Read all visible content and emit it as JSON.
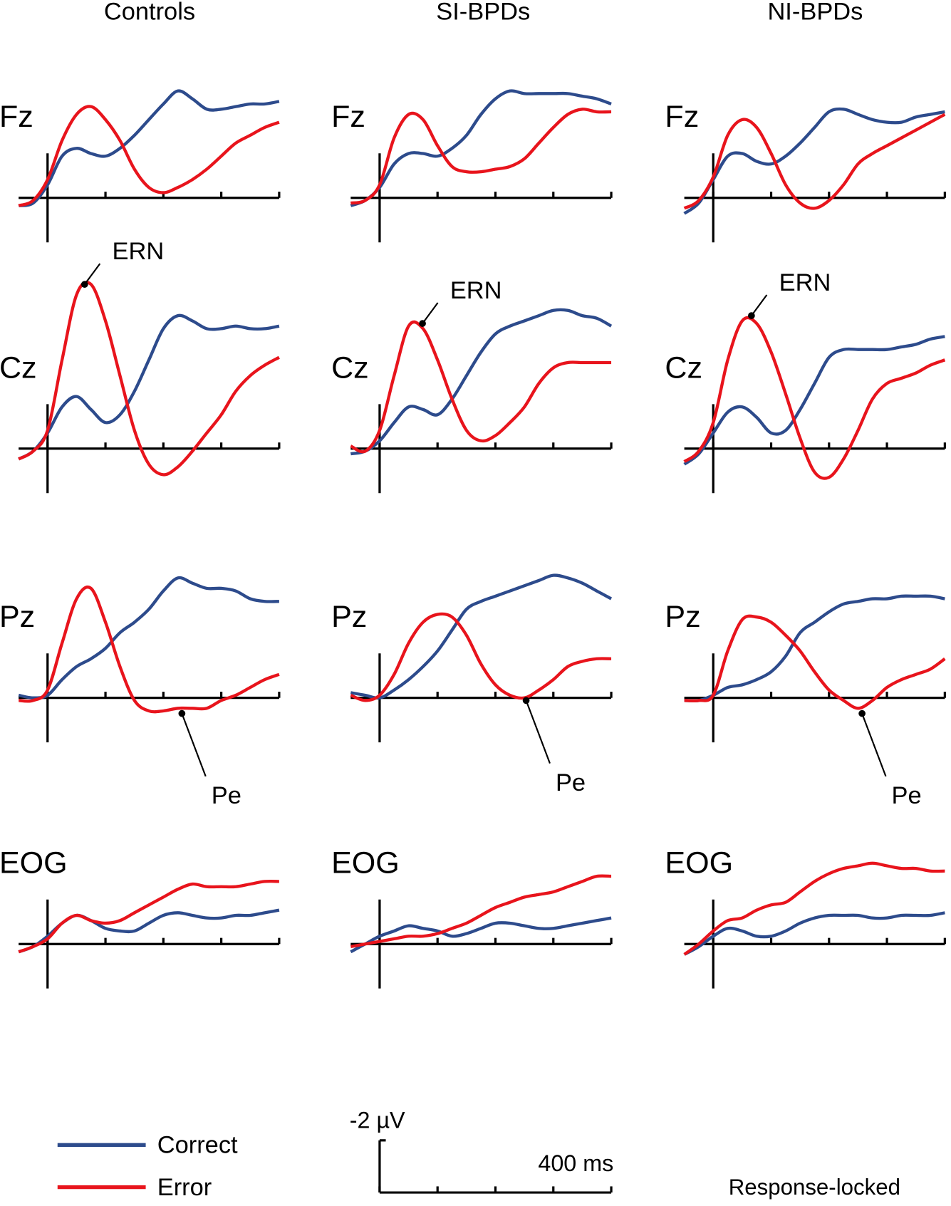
{
  "columns": [
    "Controls",
    "SI-BPDs",
    "NI-BPDs"
  ],
  "legend": [
    {
      "name": "Correct",
      "color": "#2d4b8c"
    },
    {
      "name": "Error",
      "color": "#e8141c"
    }
  ],
  "scale_bar": {
    "y_label": "-2 µV",
    "y_value": -2,
    "x_label": "400 ms",
    "x_value": 400,
    "xticks": [
      0,
      100,
      200,
      300,
      400
    ]
  },
  "note": "Response-locked",
  "chart_data": [
    {
      "type": "line",
      "title": "Fz",
      "x": [
        -50,
        -25,
        0,
        25,
        50,
        75,
        100,
        125,
        150,
        175,
        200,
        225,
        250,
        275,
        300,
        325,
        350,
        375,
        400
      ],
      "xlim": [
        -50,
        400
      ],
      "xticks": [
        0,
        100,
        200,
        300,
        400
      ],
      "ylim": [
        2,
        -7
      ],
      "series": [
        {
          "color": "#2d4b8c",
          "values": [
            0.3,
            0.2,
            -0.5,
            -1.6,
            -1.9,
            -1.7,
            -1.6,
            -1.9,
            -2.4,
            -3.0,
            -3.6,
            -4.1,
            -3.8,
            -3.4,
            -3.4,
            -3.5,
            -3.6,
            -3.6,
            -3.7
          ]
        },
        {
          "color": "#e8141c",
          "values": [
            0.3,
            0.1,
            -0.7,
            -2.2,
            -3.2,
            -3.5,
            -3.0,
            -2.2,
            -1.1,
            -0.4,
            -0.2,
            -0.4,
            -0.7,
            -1.1,
            -1.6,
            -2.1,
            -2.4,
            -2.7,
            -2.9
          ]
        }
      ]
    },
    {
      "type": "line",
      "title": "Fz",
      "x": [
        -50,
        -25,
        0,
        25,
        50,
        75,
        100,
        125,
        150,
        175,
        200,
        225,
        250,
        275,
        300,
        325,
        350,
        375,
        400
      ],
      "xlim": [
        -50,
        400
      ],
      "xticks": [
        0,
        100,
        200,
        300,
        400
      ],
      "ylim": [
        2,
        -7
      ],
      "series": [
        {
          "color": "#2d4b8c",
          "values": [
            0.3,
            0.1,
            -0.4,
            -1.3,
            -1.7,
            -1.7,
            -1.6,
            -1.9,
            -2.4,
            -3.2,
            -3.8,
            -4.1,
            -4.0,
            -4.0,
            -4.0,
            -4.0,
            -3.9,
            -3.8,
            -3.6
          ]
        },
        {
          "color": "#e8141c",
          "values": [
            0.2,
            0.1,
            -0.5,
            -2.3,
            -3.2,
            -3.0,
            -2.0,
            -1.2,
            -1.0,
            -1.0,
            -1.1,
            -1.2,
            -1.5,
            -2.1,
            -2.7,
            -3.2,
            -3.4,
            -3.3,
            -3.3
          ]
        }
      ]
    },
    {
      "type": "line",
      "title": "Fz",
      "x": [
        -50,
        -25,
        0,
        25,
        50,
        75,
        100,
        125,
        150,
        175,
        200,
        225,
        250,
        275,
        300,
        325,
        350,
        375,
        400
      ],
      "xlim": [
        -50,
        400
      ],
      "xticks": [
        0,
        100,
        200,
        300,
        400
      ],
      "ylim": [
        2,
        -7
      ],
      "series": [
        {
          "color": "#2d4b8c",
          "values": [
            0.6,
            0.2,
            -0.7,
            -1.6,
            -1.7,
            -1.4,
            -1.3,
            -1.6,
            -2.1,
            -2.7,
            -3.3,
            -3.4,
            -3.2,
            -3.0,
            -2.9,
            -2.9,
            -3.1,
            -3.2,
            -3.3
          ]
        },
        {
          "color": "#e8141c",
          "values": [
            0.4,
            0.1,
            -0.8,
            -2.4,
            -3.0,
            -2.7,
            -1.7,
            -0.5,
            0.2,
            0.4,
            0.1,
            -0.5,
            -1.3,
            -1.7,
            -2.0,
            -2.3,
            -2.6,
            -2.9,
            -3.2
          ]
        }
      ]
    },
    {
      "type": "line",
      "title": "Cz",
      "x": [
        -50,
        -25,
        0,
        25,
        50,
        75,
        100,
        125,
        150,
        175,
        200,
        225,
        250,
        275,
        300,
        325,
        350,
        375,
        400
      ],
      "xlim": [
        -50,
        400
      ],
      "xticks": [
        0,
        100,
        200,
        300,
        400
      ],
      "ylim": [
        2,
        -7
      ],
      "series": [
        {
          "color": "#2d4b8c",
          "values": [
            0.4,
            0.1,
            -0.6,
            -1.6,
            -2.0,
            -1.5,
            -1.0,
            -1.3,
            -2.2,
            -3.4,
            -4.6,
            -5.1,
            -4.9,
            -4.6,
            -4.6,
            -4.7,
            -4.6,
            -4.6,
            -4.7
          ]
        },
        {
          "color": "#e8141c",
          "values": [
            0.4,
            0.1,
            -0.7,
            -3.4,
            -5.9,
            -6.3,
            -4.9,
            -2.8,
            -0.7,
            0.6,
            1.0,
            0.7,
            0.1,
            -0.6,
            -1.3,
            -2.2,
            -2.8,
            -3.2,
            -3.5
          ]
        }
      ],
      "annotations": [
        {
          "text": "ERN",
          "x": 64,
          "y": -6.3
        }
      ]
    },
    {
      "type": "line",
      "title": "Cz",
      "x": [
        -50,
        -25,
        0,
        25,
        50,
        75,
        100,
        125,
        150,
        175,
        200,
        225,
        250,
        275,
        300,
        325,
        350,
        375,
        400
      ],
      "xlim": [
        -50,
        400
      ],
      "xticks": [
        0,
        100,
        200,
        300,
        400
      ],
      "ylim": [
        2,
        -7
      ],
      "series": [
        {
          "color": "#2d4b8c",
          "values": [
            0.2,
            0.1,
            -0.3,
            -1.0,
            -1.6,
            -1.5,
            -1.3,
            -1.9,
            -2.8,
            -3.7,
            -4.4,
            -4.7,
            -4.9,
            -5.1,
            -5.3,
            -5.3,
            -5.1,
            -5.0,
            -4.7
          ]
        },
        {
          "color": "#e8141c",
          "values": [
            -0.1,
            0.1,
            -0.7,
            -2.8,
            -4.7,
            -4.6,
            -3.4,
            -1.9,
            -0.7,
            -0.3,
            -0.5,
            -1.0,
            -1.6,
            -2.5,
            -3.1,
            -3.3,
            -3.3,
            -3.3,
            -3.3
          ]
        }
      ],
      "annotations": [
        {
          "text": "ERN",
          "x": 74,
          "y": -4.8
        }
      ]
    },
    {
      "type": "line",
      "title": "Cz",
      "x": [
        -50,
        -25,
        0,
        25,
        50,
        75,
        100,
        125,
        150,
        175,
        200,
        225,
        250,
        275,
        300,
        325,
        350,
        375,
        400
      ],
      "xlim": [
        -50,
        400
      ],
      "xticks": [
        0,
        100,
        200,
        300,
        400
      ],
      "ylim": [
        2,
        -7
      ],
      "series": [
        {
          "color": "#2d4b8c",
          "values": [
            0.6,
            0.2,
            -0.6,
            -1.4,
            -1.6,
            -1.2,
            -0.6,
            -0.7,
            -1.5,
            -2.5,
            -3.5,
            -3.8,
            -3.8,
            -3.8,
            -3.8,
            -3.9,
            -4.0,
            -4.2,
            -4.3
          ]
        },
        {
          "color": "#e8141c",
          "values": [
            0.5,
            0.1,
            -1.0,
            -3.4,
            -4.9,
            -4.8,
            -3.7,
            -2.1,
            -0.4,
            0.9,
            1.1,
            0.4,
            -0.7,
            -1.9,
            -2.5,
            -2.7,
            -2.9,
            -3.2,
            -3.4
          ]
        }
      ],
      "annotations": [
        {
          "text": "ERN",
          "x": 66,
          "y": -5.1
        }
      ]
    },
    {
      "type": "line",
      "title": "Pz",
      "x": [
        -50,
        -25,
        0,
        25,
        50,
        75,
        100,
        125,
        150,
        175,
        200,
        225,
        250,
        275,
        300,
        325,
        350,
        375,
        400
      ],
      "xlim": [
        -50,
        400
      ],
      "xticks": [
        0,
        100,
        200,
        300,
        400
      ],
      "ylim": [
        2,
        -7
      ],
      "series": [
        {
          "color": "#2d4b8c",
          "values": [
            -0.1,
            0.0,
            -0.1,
            -0.7,
            -1.2,
            -1.5,
            -1.9,
            -2.5,
            -2.9,
            -3.4,
            -4.1,
            -4.6,
            -4.4,
            -4.2,
            -4.2,
            -4.1,
            -3.8,
            -3.7,
            -3.7
          ]
        },
        {
          "color": "#e8141c",
          "values": [
            0.1,
            0.1,
            -0.3,
            -2.1,
            -3.8,
            -4.2,
            -2.9,
            -1.2,
            0.1,
            0.5,
            0.5,
            0.4,
            0.4,
            0.4,
            0.1,
            -0.1,
            -0.4,
            -0.7,
            -0.9
          ]
        }
      ],
      "annotations": [
        {
          "text": "Pe",
          "x": 232,
          "y": 0.6
        }
      ]
    },
    {
      "type": "line",
      "title": "Pz",
      "x": [
        -50,
        -25,
        0,
        25,
        50,
        75,
        100,
        125,
        150,
        175,
        200,
        225,
        250,
        275,
        300,
        325,
        350,
        375,
        400
      ],
      "xlim": [
        -50,
        400
      ],
      "xticks": [
        0,
        100,
        200,
        300,
        400
      ],
      "ylim": [
        2,
        -7
      ],
      "series": [
        {
          "color": "#2d4b8c",
          "values": [
            -0.2,
            -0.1,
            0.0,
            -0.3,
            -0.7,
            -1.2,
            -1.8,
            -2.6,
            -3.4,
            -3.7,
            -3.9,
            -4.1,
            -4.3,
            -4.5,
            -4.7,
            -4.6,
            -4.4,
            -4.1,
            -3.8
          ]
        },
        {
          "color": "#e8141c",
          "values": [
            -0.1,
            0.1,
            -0.1,
            -0.9,
            -2.1,
            -2.9,
            -3.2,
            -3.1,
            -2.4,
            -1.3,
            -0.5,
            -0.1,
            0.0,
            -0.3,
            -0.7,
            -1.2,
            -1.4,
            -1.5,
            -1.5
          ]
        }
      ],
      "annotations": [
        {
          "text": "Pe",
          "x": 253,
          "y": 0.1
        }
      ]
    },
    {
      "type": "line",
      "title": "Pz",
      "x": [
        -50,
        -25,
        0,
        25,
        50,
        75,
        100,
        125,
        150,
        175,
        200,
        225,
        250,
        275,
        300,
        325,
        350,
        375,
        400
      ],
      "xlim": [
        -50,
        400
      ],
      "xticks": [
        0,
        100,
        200,
        300,
        400
      ],
      "ylim": [
        2,
        -7
      ],
      "series": [
        {
          "color": "#2d4b8c",
          "values": [
            0.1,
            0.1,
            -0.1,
            -0.4,
            -0.5,
            -0.7,
            -1.0,
            -1.6,
            -2.5,
            -2.9,
            -3.3,
            -3.6,
            -3.7,
            -3.8,
            -3.8,
            -3.9,
            -3.9,
            -3.9,
            -3.8
          ]
        },
        {
          "color": "#e8141c",
          "values": [
            0.1,
            0.1,
            -0.1,
            -1.8,
            -3.0,
            -3.1,
            -2.9,
            -2.4,
            -1.8,
            -1.0,
            -0.3,
            0.1,
            0.4,
            0.1,
            -0.4,
            -0.7,
            -0.9,
            -1.1,
            -1.5
          ]
        }
      ],
      "annotations": [
        {
          "text": "Pe",
          "x": 257,
          "y": 0.6
        }
      ]
    },
    {
      "type": "line",
      "title": "EOG",
      "x": [
        -50,
        -25,
        0,
        25,
        50,
        75,
        100,
        125,
        150,
        175,
        200,
        225,
        250,
        275,
        300,
        325,
        350,
        375,
        400
      ],
      "xlim": [
        -50,
        400
      ],
      "xticks": [
        0,
        100,
        200,
        300,
        400
      ],
      "ylim": [
        2,
        -7
      ],
      "series": [
        {
          "color": "#2d4b8c",
          "values": [
            0.3,
            0.1,
            -0.3,
            -0.8,
            -1.1,
            -0.9,
            -0.6,
            -0.5,
            -0.5,
            -0.8,
            -1.1,
            -1.2,
            -1.1,
            -1.0,
            -1.0,
            -1.1,
            -1.1,
            -1.2,
            -1.3
          ]
        },
        {
          "color": "#e8141c",
          "values": [
            0.3,
            0.1,
            -0.2,
            -0.8,
            -1.1,
            -0.9,
            -0.8,
            -0.9,
            -1.2,
            -1.5,
            -1.8,
            -2.1,
            -2.3,
            -2.2,
            -2.2,
            -2.2,
            -2.3,
            -2.4,
            -2.4
          ]
        }
      ]
    },
    {
      "type": "line",
      "title": "EOG",
      "x": [
        -50,
        -25,
        0,
        25,
        50,
        75,
        100,
        125,
        150,
        175,
        200,
        225,
        250,
        275,
        300,
        325,
        350,
        375,
        400
      ],
      "xlim": [
        -50,
        400
      ],
      "xticks": [
        0,
        100,
        200,
        300,
        400
      ],
      "ylim": [
        2,
        -7
      ],
      "series": [
        {
          "color": "#2d4b8c",
          "values": [
            0.3,
            0.0,
            -0.3,
            -0.5,
            -0.7,
            -0.6,
            -0.5,
            -0.3,
            -0.4,
            -0.6,
            -0.8,
            -0.8,
            -0.7,
            -0.6,
            -0.6,
            -0.7,
            -0.8,
            -0.9,
            -1.0
          ]
        },
        {
          "color": "#e8141c",
          "values": [
            0.1,
            0.0,
            -0.1,
            -0.2,
            -0.3,
            -0.3,
            -0.4,
            -0.6,
            -0.8,
            -1.1,
            -1.4,
            -1.6,
            -1.8,
            -1.9,
            -2.0,
            -2.2,
            -2.4,
            -2.6,
            -2.6
          ]
        }
      ]
    },
    {
      "type": "line",
      "title": "EOG",
      "x": [
        -50,
        -25,
        0,
        25,
        50,
        75,
        100,
        125,
        150,
        175,
        200,
        225,
        250,
        275,
        300,
        325,
        350,
        375,
        400
      ],
      "xlim": [
        -50,
        400
      ],
      "xticks": [
        0,
        100,
        200,
        300,
        400
      ],
      "ylim": [
        2,
        -7
      ],
      "series": [
        {
          "color": "#2d4b8c",
          "values": [
            0.4,
            0.1,
            -0.3,
            -0.6,
            -0.5,
            -0.3,
            -0.3,
            -0.5,
            -0.8,
            -1.0,
            -1.1,
            -1.1,
            -1.1,
            -1.0,
            -1.0,
            -1.1,
            -1.1,
            -1.1,
            -1.2
          ]
        },
        {
          "color": "#e8141c",
          "values": [
            0.4,
            0.0,
            -0.5,
            -0.9,
            -1.0,
            -1.3,
            -1.5,
            -1.6,
            -2.0,
            -2.4,
            -2.7,
            -2.9,
            -3.0,
            -3.1,
            -3.0,
            -2.9,
            -2.9,
            -2.8,
            -2.8
          ]
        }
      ]
    }
  ]
}
